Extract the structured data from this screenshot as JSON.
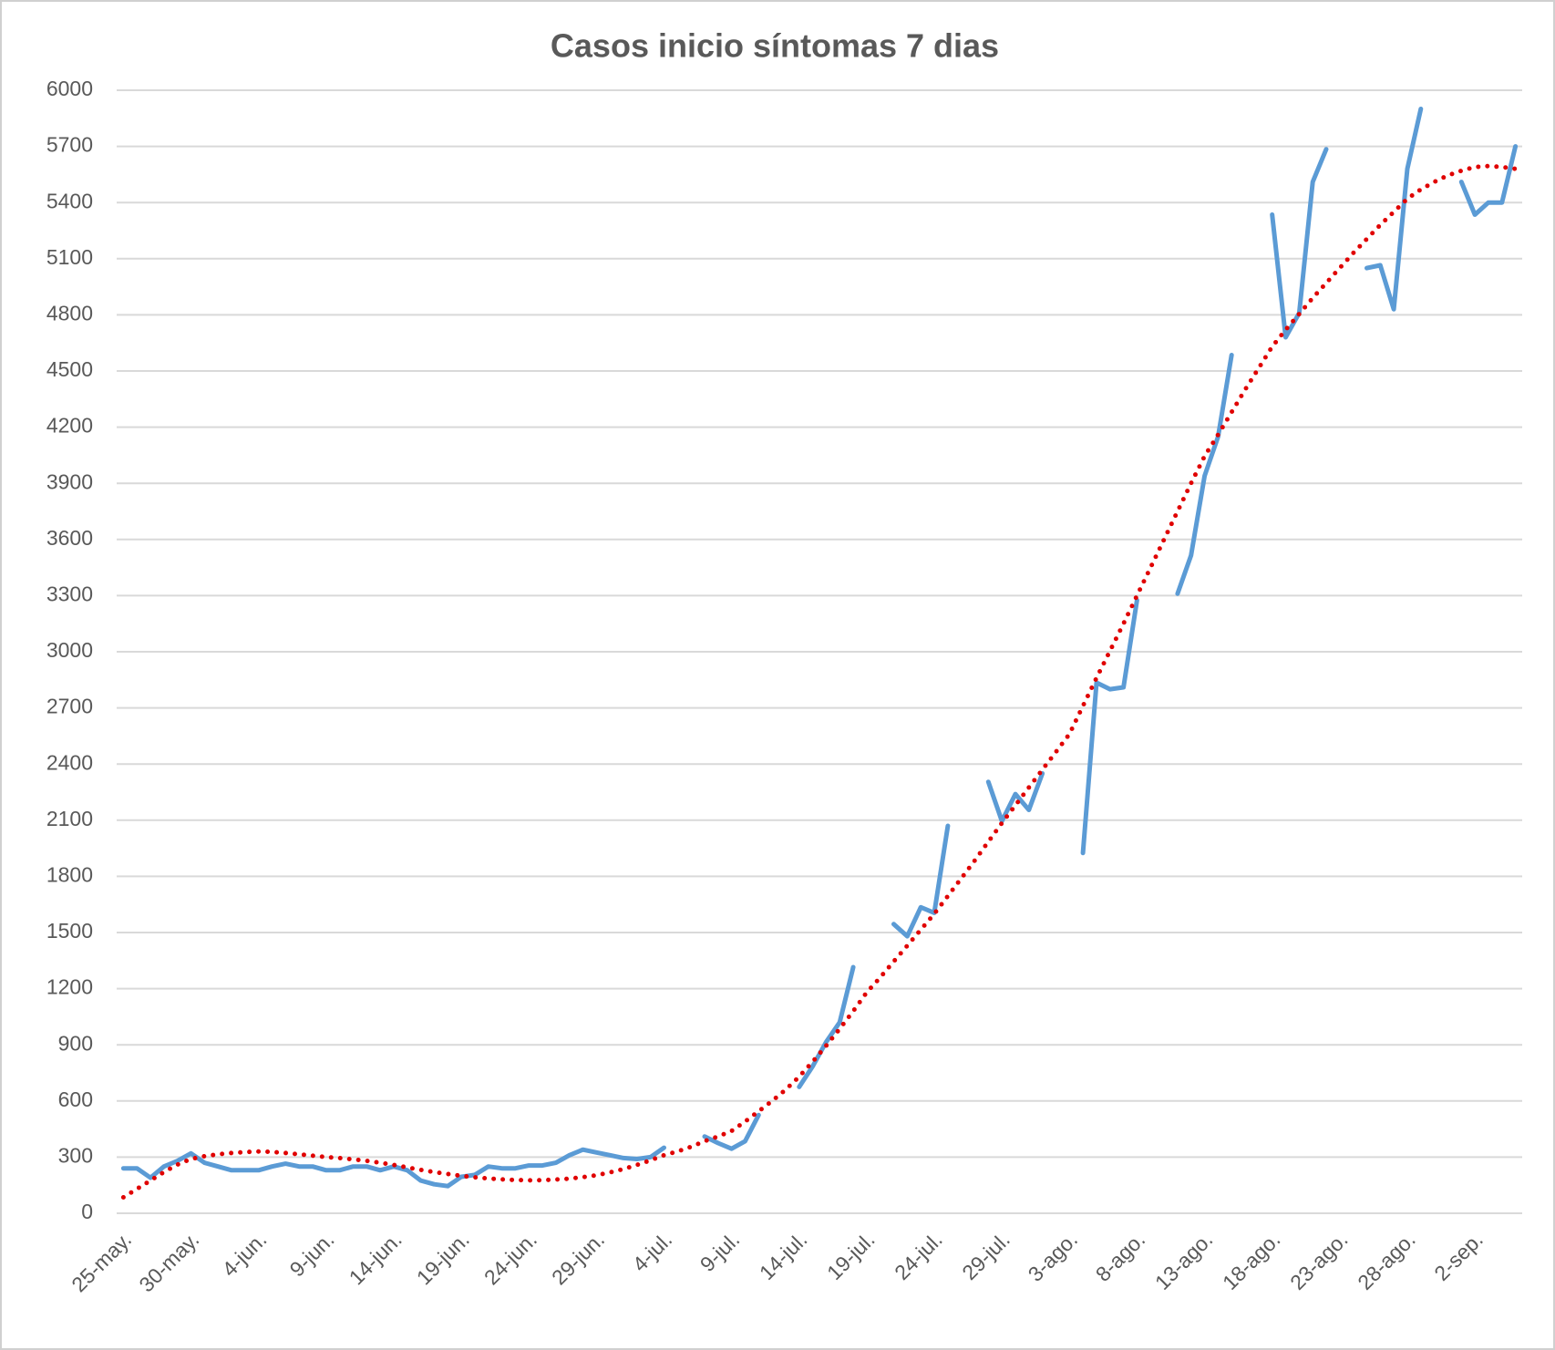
{
  "chart_data": {
    "type": "line",
    "title": "Casos  inicio síntomas 7 dias",
    "categories": [
      "25-may.",
      null,
      null,
      null,
      null,
      "30-may.",
      null,
      null,
      null,
      null,
      "4-jun.",
      null,
      null,
      null,
      null,
      "9-jun.",
      null,
      null,
      null,
      null,
      "14-jun.",
      null,
      null,
      null,
      null,
      "19-jun.",
      null,
      null,
      null,
      null,
      "24-jun.",
      null,
      null,
      null,
      null,
      "29-jun.",
      null,
      null,
      null,
      null,
      "4-jul.",
      null,
      null,
      null,
      null,
      "9-jul.",
      null,
      null,
      null,
      null,
      "14-jul.",
      null,
      null,
      null,
      null,
      "19-jul.",
      null,
      null,
      null,
      null,
      "24-jul.",
      null,
      null,
      null,
      null,
      "29-jul.",
      null,
      null,
      null,
      null,
      "3-ago.",
      null,
      null,
      null,
      null,
      "8-ago.",
      null,
      null,
      null,
      null,
      "13-ago.",
      null,
      null,
      null,
      null,
      "18-ago.",
      null,
      null,
      null,
      null,
      "23-ago.",
      null,
      null,
      null,
      null,
      "28-ago.",
      null,
      null,
      null,
      null,
      "2-sep.",
      null,
      null,
      null
    ],
    "series": [
      {
        "color": "#5b9bd5",
        "style": "solid",
        "values": [
          240,
          240,
          190,
          250,
          280,
          320,
          270,
          250,
          230,
          230,
          230,
          250,
          265,
          250,
          250,
          230,
          230,
          250,
          250,
          230,
          250,
          230,
          175,
          155,
          145,
          195,
          205,
          250,
          240,
          240,
          255,
          255,
          270,
          310,
          340,
          325,
          310,
          295,
          290,
          300,
          350,
          null,
          null,
          410,
          375,
          345,
          385,
          525,
          null,
          null,
          675,
          785,
          915,
          1020,
          1315,
          null,
          null,
          1545,
          1480,
          1635,
          1605,
          2070,
          null,
          null,
          2305,
          2095,
          2240,
          2155,
          2350,
          null,
          null,
          1925,
          2835,
          2800,
          2810,
          3275,
          null,
          null,
          3310,
          3515,
          3940,
          4150,
          4585,
          null,
          null,
          5335,
          4680,
          4810,
          5510,
          5685,
          null,
          null,
          5050,
          5065,
          4830,
          5580,
          5900,
          null,
          null,
          5510,
          5335,
          5400,
          5400,
          5700
        ]
      },
      {
        "color": "#e00000",
        "style": "dotted",
        "values": [
          85,
          130,
          175,
          220,
          260,
          290,
          305,
          315,
          322,
          327,
          330,
          328,
          322,
          315,
          308,
          300,
          295,
          288,
          280,
          270,
          258,
          245,
          232,
          220,
          210,
          200,
          192,
          186,
          181,
          178,
          176,
          177,
          180,
          185,
          193,
          203,
          218,
          236,
          258,
          283,
          310,
          330,
          355,
          385,
          410,
          440,
          490,
          545,
          600,
          660,
          730,
          810,
          895,
          985,
          1080,
          1180,
          1260,
          1345,
          1430,
          1515,
          1600,
          1695,
          1790,
          1885,
          1985,
          2085,
          2180,
          2275,
          2370,
          2465,
          2560,
          2710,
          2860,
          3005,
          3150,
          3300,
          3450,
          3600,
          3750,
          3900,
          4045,
          4160,
          4280,
          4400,
          4515,
          4630,
          4720,
          4805,
          4890,
          4970,
          5050,
          5130,
          5205,
          5280,
          5350,
          5420,
          5470,
          5510,
          5545,
          5570,
          5590,
          5595,
          5590,
          5580
        ]
      }
    ],
    "ylim": [
      0,
      6000
    ],
    "yticks": [
      0,
      300,
      600,
      900,
      1200,
      1500,
      1800,
      2100,
      2400,
      2700,
      3000,
      3300,
      3600,
      3900,
      4200,
      4500,
      4800,
      5100,
      5400,
      5700,
      6000
    ],
    "grid": true
  }
}
